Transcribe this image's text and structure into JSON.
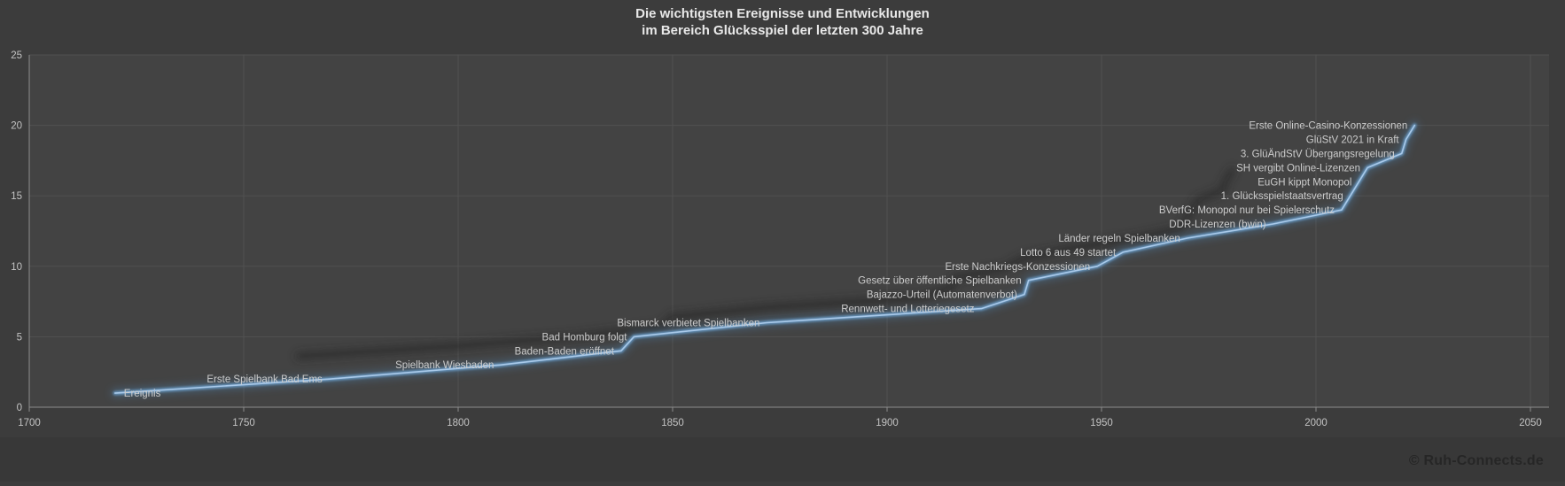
{
  "title": {
    "line1": "Die wichtigsten Ereignisse und Entwicklungen",
    "line2": "im Bereich Glücksspiel der letzten 300 Jahre"
  },
  "footer": {
    "copyright": "© Ruh-Connects.de"
  },
  "colors": {
    "background": "#3C3C3C",
    "plot_background": "#434343",
    "footer_band": "#383838",
    "grid": "#515151",
    "axis": "#8C8C8C",
    "tick_text": "#C3C3C3",
    "label_text": "#CCCCCC",
    "title_text": "#E8E8E8",
    "copyright_text": "#262626",
    "line_core": "#A9C9E9",
    "line_mid": "#6B9CC7",
    "line_glow": "#4D82B0",
    "shadow": "#262626"
  },
  "chart_data": {
    "type": "line",
    "series_name": "Ereignis",
    "title": "Die wichtigsten Ereignisse und Entwicklungen im Bereich Glücksspiel der letzten 300 Jahre",
    "xlabel": "",
    "ylabel": "",
    "xlim": [
      1700,
      2050
    ],
    "ylim": [
      0,
      25
    ],
    "x_ticks": [
      1700,
      1750,
      1800,
      1850,
      1900,
      1950,
      2000,
      2050
    ],
    "y_ticks": [
      0,
      5,
      10,
      15,
      20,
      25
    ],
    "grid": true,
    "legend": "none",
    "events": [
      {
        "label": "Ereignis",
        "year": 1720,
        "value": 1
      },
      {
        "label": "Erste Spielbank Bad Ems",
        "year": 1770,
        "value": 2
      },
      {
        "label": "Spielbank Wiesbaden",
        "year": 1810,
        "value": 3
      },
      {
        "label": "Baden-Baden eröffnet",
        "year": 1838,
        "value": 4
      },
      {
        "label": "Bad Homburg folgt",
        "year": 1841,
        "value": 5
      },
      {
        "label": "Bismarck verbietet Spielbanken",
        "year": 1872,
        "value": 6
      },
      {
        "label": "Rennwett- und Lotteriegesetz",
        "year": 1922,
        "value": 7
      },
      {
        "label": "Bajazzo-Urteil (Automatenverbot)",
        "year": 1932,
        "value": 8
      },
      {
        "label": "Gesetz über öffentliche Spielbanken",
        "year": 1933,
        "value": 9
      },
      {
        "label": "Erste Nachkriegs-Konzessionen",
        "year": 1949,
        "value": 10
      },
      {
        "label": "Lotto 6 aus 49 startet",
        "year": 1955,
        "value": 11
      },
      {
        "label": "Länder regeln Spielbanken",
        "year": 1970,
        "value": 12
      },
      {
        "label": "DDR-Lizenzen (bwin)",
        "year": 1990,
        "value": 13
      },
      {
        "label": "BVerfG: Monopol nur bei Spielerschutz",
        "year": 2006,
        "value": 14
      },
      {
        "label": "1. Glücksspielstaatsvertrag",
        "year": 2008,
        "value": 15
      },
      {
        "label": "EuGH kippt Monopol",
        "year": 2010,
        "value": 16
      },
      {
        "label": "SH vergibt Online-Lizenzen",
        "year": 2012,
        "value": 17
      },
      {
        "label": "3. GlüÄndStV Übergangsregelung",
        "year": 2020,
        "value": 18
      },
      {
        "label": "GlüStV 2021 in Kraft",
        "year": 2021,
        "value": 19
      },
      {
        "label": "Erste Online-Casino-Konzessionen",
        "year": 2023,
        "value": 20
      }
    ]
  }
}
